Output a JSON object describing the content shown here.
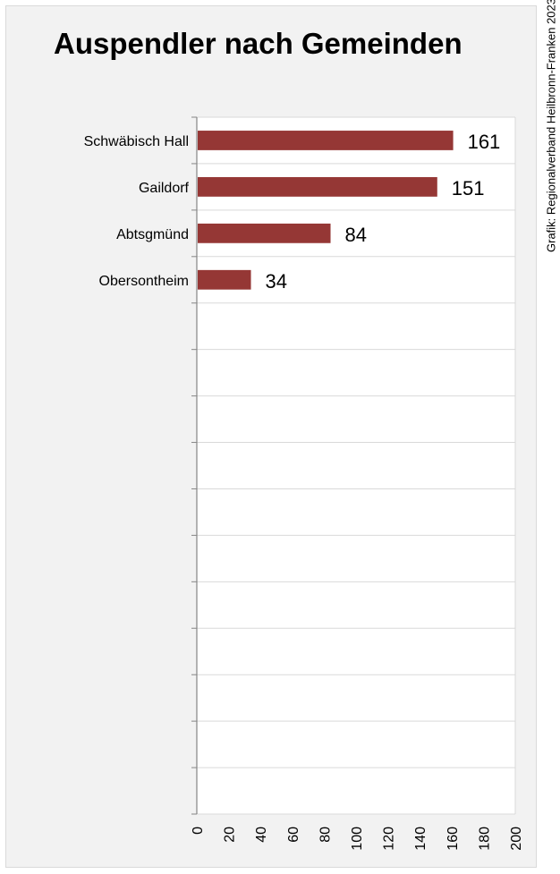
{
  "chart_data": {
    "type": "bar",
    "orientation": "horizontal",
    "title": "Auspendler nach Gemeinden",
    "credit": "Grafik: Regionalverband Heilbronn-Franken 2023",
    "categories": [
      "Schwäbisch Hall",
      "Gaildorf",
      "Abtsgmünd",
      "Obersontheim"
    ],
    "values": [
      161,
      151,
      84,
      34
    ],
    "data_labels": [
      "161",
      "151",
      "84",
      "34"
    ],
    "category_rows": 15,
    "xlim": [
      0,
      200
    ],
    "x_ticks": [
      "0",
      "20",
      "40",
      "60",
      "80",
      "100",
      "120",
      "140",
      "160",
      "180",
      "200"
    ],
    "xlabel": "",
    "ylabel": "",
    "grid": true,
    "legend": "none",
    "colors": {
      "bar": "#953735",
      "plot_background": "#ffffff",
      "panel_background": "#f2f2f2",
      "gridline": "#d9d9d9",
      "axis": "#868686"
    }
  }
}
